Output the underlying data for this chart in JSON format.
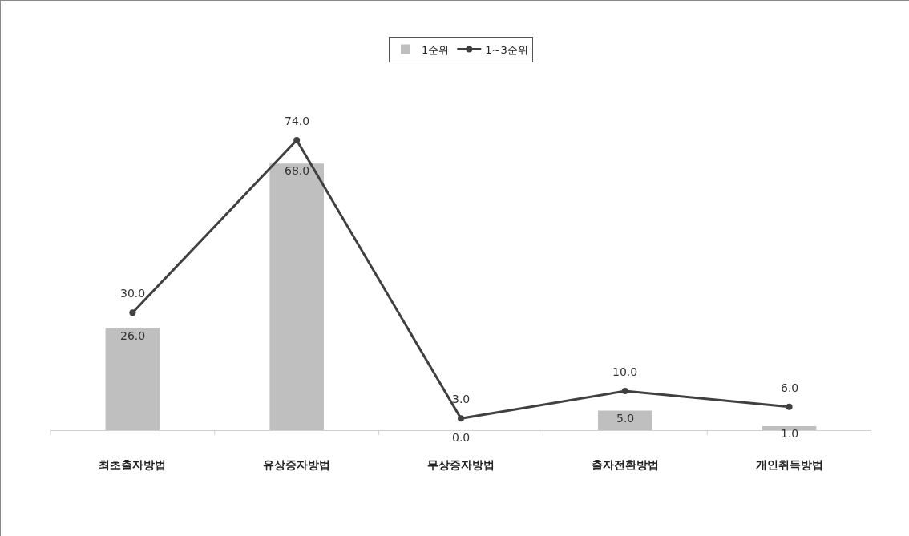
{
  "chart_data": {
    "type": "bar",
    "categories": [
      "최초출자방법",
      "유상증자방법",
      "무상증자방법",
      "출자전환방법",
      "개인취득방법"
    ],
    "series": [
      {
        "name": "1순위",
        "color": "#bfbfbf",
        "values": [
          26.0,
          68.0,
          0.0,
          5.0,
          1.0
        ],
        "value_labels": [
          "26.0",
          "68.0",
          "0.0",
          "5.0",
          "1.0"
        ]
      },
      {
        "name": "1~3순위",
        "type": "line",
        "color": "#404040",
        "values": [
          30.0,
          74.0,
          3.0,
          10.0,
          6.0
        ],
        "value_labels": [
          "30.0",
          "74.0",
          "3.0",
          "10.0",
          "6.0"
        ]
      }
    ],
    "legend": "top",
    "marker": "circle",
    "line_style": "solid"
  }
}
